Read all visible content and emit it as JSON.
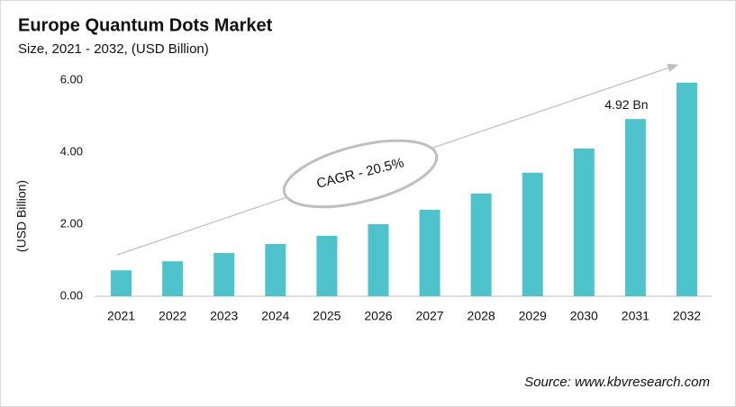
{
  "chart_data": {
    "type": "bar",
    "title": "Europe Quantum Dots Market",
    "subtitle": "Size, 2021 - 2032, (USD Billion)",
    "y_label": "(USD Billion)",
    "categories": [
      "2021",
      "2022",
      "2023",
      "2024",
      "2025",
      "2026",
      "2027",
      "2028",
      "2029",
      "2030",
      "2031",
      "2032"
    ],
    "values": [
      0.72,
      0.97,
      1.2,
      1.45,
      1.68,
      2.0,
      2.4,
      2.85,
      3.43,
      4.1,
      4.92,
      5.93
    ],
    "value_labels": [
      null,
      null,
      null,
      null,
      null,
      null,
      null,
      null,
      null,
      null,
      "4.92 Bn",
      null
    ],
    "color": "#4fc3cc",
    "ylim": [
      0,
      6
    ],
    "yticks": [
      {
        "value": 0,
        "label": "0.00"
      },
      {
        "value": 2,
        "label": "2.00"
      },
      {
        "value": 4,
        "label": "4.00"
      },
      {
        "value": 6,
        "label": "6.00"
      }
    ],
    "grid": false,
    "annotation": "CAGR - 20.5%",
    "source": "Source: www.kbvresearch.com"
  }
}
